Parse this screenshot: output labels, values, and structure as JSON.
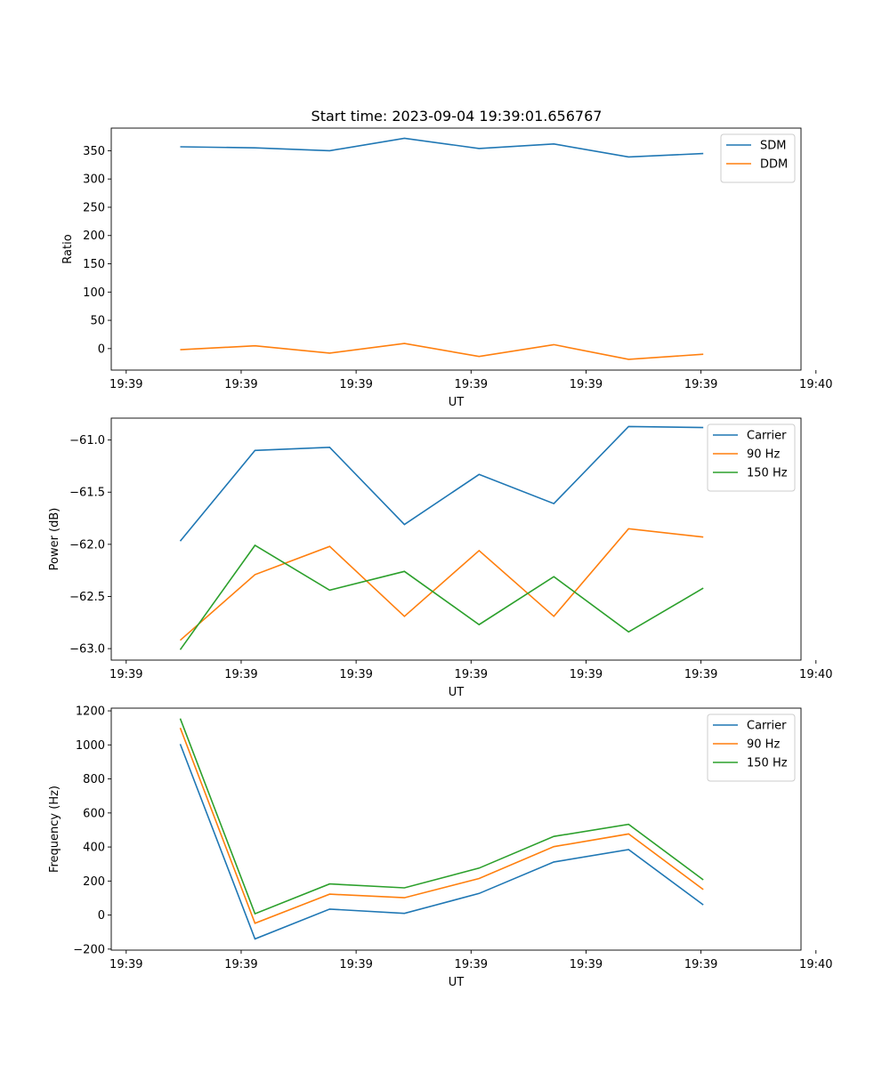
{
  "figure": {
    "title": "Start time: 2023-09-04 19:39:01.656767"
  },
  "colors": {
    "blue": "#1f77b4",
    "orange": "#ff7f0e",
    "green": "#2ca02c"
  },
  "chart_data": [
    {
      "type": "line",
      "title": "Start time: 2023-09-04 19:39:01.656767",
      "xlabel": "UT",
      "ylabel": "Ratio",
      "xlim": [
        -0.6,
        5.4
      ],
      "x": [
        0.0,
        0.65,
        1.3,
        1.95,
        2.6,
        3.25,
        3.9,
        4.55
      ],
      "xticks": [
        -0.47,
        0.53,
        1.53,
        2.53,
        3.53,
        4.53,
        5.53
      ],
      "xtick_labels": [
        "19:39",
        "19:39",
        "19:39",
        "19:39",
        "19:39",
        "19:39",
        "19:40"
      ],
      "ylim": [
        -38,
        390
      ],
      "yticks": [
        0,
        50,
        100,
        150,
        200,
        250,
        300,
        350
      ],
      "ytick_labels": [
        "0",
        "50",
        "100",
        "150",
        "200",
        "250",
        "300",
        "350"
      ],
      "legend": "top-right",
      "series": [
        {
          "name": "SDM",
          "color": "#1f77b4",
          "values": [
            357,
            355,
            350,
            372,
            354,
            362,
            339,
            345
          ]
        },
        {
          "name": "DDM",
          "color": "#ff7f0e",
          "values": [
            -2,
            5,
            -8,
            9,
            -14,
            7,
            -19,
            -10
          ]
        }
      ]
    },
    {
      "type": "line",
      "title": "",
      "xlabel": "UT",
      "ylabel": "Power (dB)",
      "xlim": [
        -0.6,
        5.4
      ],
      "x": [
        0.0,
        0.65,
        1.3,
        1.95,
        2.6,
        3.25,
        3.9,
        4.55
      ],
      "xticks": [
        -0.47,
        0.53,
        1.53,
        2.53,
        3.53,
        4.53,
        5.53
      ],
      "xtick_labels": [
        "19:39",
        "19:39",
        "19:39",
        "19:39",
        "19:39",
        "19:39",
        "19:40"
      ],
      "ylim": [
        -63.11,
        -60.79
      ],
      "yticks": [
        -63.0,
        -62.5,
        -62.0,
        -61.5,
        -61.0
      ],
      "ytick_labels": [
        "−63.0",
        "−62.5",
        "−62.0",
        "−61.5",
        "−61.0"
      ],
      "legend": "top-right",
      "series": [
        {
          "name": "Carrier",
          "color": "#1f77b4",
          "values": [
            -61.97,
            -61.1,
            -61.07,
            -61.81,
            -61.33,
            -61.61,
            -60.87,
            -60.88
          ]
        },
        {
          "name": "90 Hz",
          "color": "#ff7f0e",
          "values": [
            -62.92,
            -62.29,
            -62.02,
            -62.69,
            -62.06,
            -62.69,
            -61.85,
            -61.93
          ]
        },
        {
          "name": "150 Hz",
          "color": "#2ca02c",
          "values": [
            -63.01,
            -62.01,
            -62.44,
            -62.26,
            -62.77,
            -62.31,
            -62.84,
            -62.42
          ]
        }
      ]
    },
    {
      "type": "line",
      "title": "",
      "xlabel": "UT",
      "ylabel": "Frequency (Hz)",
      "xlim": [
        -0.6,
        5.4
      ],
      "x": [
        0.0,
        0.65,
        1.3,
        1.95,
        2.6,
        3.25,
        3.9,
        4.55
      ],
      "xticks": [
        -0.47,
        0.53,
        1.53,
        2.53,
        3.53,
        4.53,
        5.53
      ],
      "xtick_labels": [
        "19:39",
        "19:39",
        "19:39",
        "19:39",
        "19:39",
        "19:39",
        "19:40"
      ],
      "ylim": [
        -206,
        1216
      ],
      "yticks": [
        -200,
        0,
        200,
        400,
        600,
        800,
        1000,
        1200
      ],
      "ytick_labels": [
        "−200",
        "0",
        "200",
        "400",
        "600",
        "800",
        "1000",
        "1200"
      ],
      "legend": "top-right",
      "series": [
        {
          "name": "Carrier",
          "color": "#1f77b4",
          "values": [
            1005,
            -140,
            35,
            10,
            127,
            312,
            385,
            60
          ]
        },
        {
          "name": "90 Hz",
          "color": "#ff7f0e",
          "values": [
            1100,
            -48,
            123,
            102,
            215,
            402,
            477,
            150
          ]
        },
        {
          "name": "150 Hz",
          "color": "#2ca02c",
          "values": [
            1155,
            8,
            183,
            160,
            276,
            462,
            533,
            207
          ]
        }
      ]
    }
  ]
}
